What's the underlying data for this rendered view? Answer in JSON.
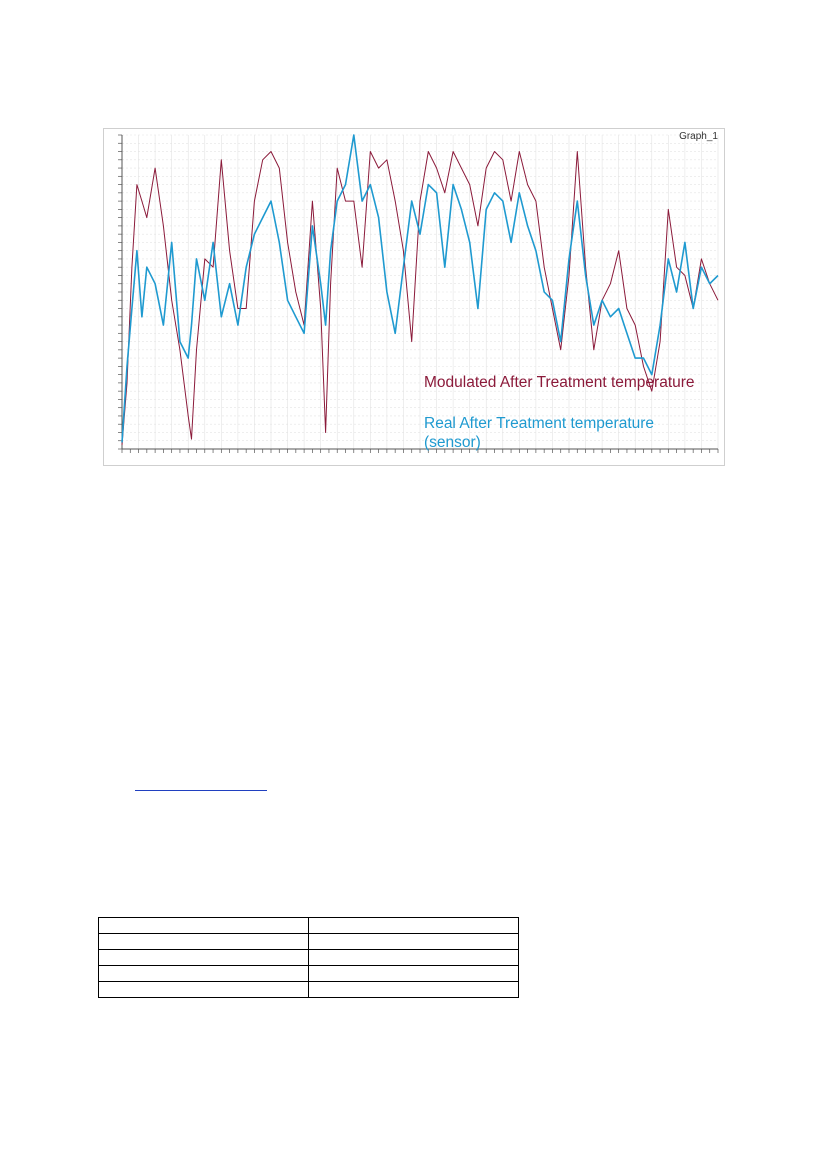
{
  "colors": {
    "modulated": "#8b1a3a",
    "real": "#1f9ad0",
    "grid": "#e3e3e3",
    "axis": "#555555"
  },
  "chart_data": {
    "type": "line",
    "corner_label": "Graph_1",
    "xlim": [
      0,
      3600
    ],
    "ylim": [
      80,
      460
    ],
    "grid": true,
    "legend_placement": "bottom-right",
    "series": [
      {
        "name": "Modulated After Treatment temperature",
        "x": [
          0,
          30,
          60,
          90,
          120,
          150,
          200,
          250,
          300,
          350,
          400,
          420,
          450,
          500,
          550,
          600,
          650,
          700,
          750,
          800,
          850,
          900,
          950,
          1000,
          1050,
          1100,
          1150,
          1200,
          1230,
          1260,
          1300,
          1350,
          1400,
          1450,
          1500,
          1550,
          1600,
          1650,
          1700,
          1750,
          1800,
          1850,
          1900,
          1950,
          2000,
          2050,
          2100,
          2150,
          2200,
          2250,
          2300,
          2350,
          2400,
          2450,
          2500,
          2550,
          2600,
          2650,
          2700,
          2750,
          2800,
          2850,
          2900,
          2950,
          3000,
          3050,
          3100,
          3150,
          3200,
          3250,
          3300,
          3350,
          3400,
          3450,
          3500,
          3550,
          3600
        ],
        "y": [
          85,
          160,
          300,
          400,
          380,
          360,
          420,
          350,
          260,
          200,
          120,
          92,
          200,
          310,
          300,
          430,
          320,
          250,
          250,
          380,
          430,
          440,
          420,
          330,
          270,
          230,
          380,
          250,
          100,
          280,
          420,
          380,
          380,
          300,
          440,
          420,
          430,
          380,
          320,
          210,
          380,
          440,
          420,
          390,
          440,
          420,
          400,
          350,
          420,
          440,
          430,
          380,
          440,
          400,
          380,
          300,
          250,
          200,
          290,
          440,
          300,
          200,
          260,
          280,
          320,
          250,
          230,
          180,
          150,
          210,
          370,
          300,
          290,
          250,
          310,
          280,
          260
        ]
      },
      {
        "name": "Real After Treatment temperature (sensor)",
        "x": [
          0,
          30,
          60,
          90,
          120,
          150,
          200,
          250,
          300,
          350,
          400,
          420,
          450,
          500,
          550,
          600,
          650,
          700,
          750,
          800,
          850,
          900,
          950,
          1000,
          1050,
          1100,
          1150,
          1200,
          1230,
          1260,
          1300,
          1350,
          1400,
          1450,
          1500,
          1550,
          1600,
          1650,
          1700,
          1750,
          1800,
          1850,
          1900,
          1950,
          2000,
          2050,
          2100,
          2150,
          2200,
          2250,
          2300,
          2350,
          2400,
          2450,
          2500,
          2550,
          2600,
          2650,
          2700,
          2750,
          2800,
          2850,
          2900,
          2950,
          3000,
          3050,
          3100,
          3150,
          3200,
          3250,
          3300,
          3350,
          3400,
          3450,
          3500,
          3550,
          3600
        ],
        "y": [
          88,
          180,
          250,
          320,
          240,
          300,
          280,
          230,
          330,
          210,
          190,
          230,
          310,
          260,
          330,
          240,
          280,
          230,
          300,
          340,
          360,
          380,
          330,
          260,
          240,
          220,
          350,
          280,
          230,
          320,
          380,
          400,
          460,
          380,
          400,
          360,
          270,
          220,
          300,
          380,
          340,
          400,
          390,
          300,
          400,
          370,
          330,
          250,
          370,
          390,
          380,
          330,
          390,
          350,
          320,
          270,
          260,
          210,
          310,
          380,
          290,
          230,
          260,
          240,
          250,
          220,
          190,
          190,
          170,
          230,
          310,
          270,
          330,
          250,
          300,
          280,
          290
        ]
      }
    ]
  },
  "table": {
    "rows": [
      [
        "",
        ""
      ],
      [
        "",
        ""
      ],
      [
        "",
        ""
      ],
      [
        "",
        ""
      ],
      [
        "",
        ""
      ]
    ]
  }
}
